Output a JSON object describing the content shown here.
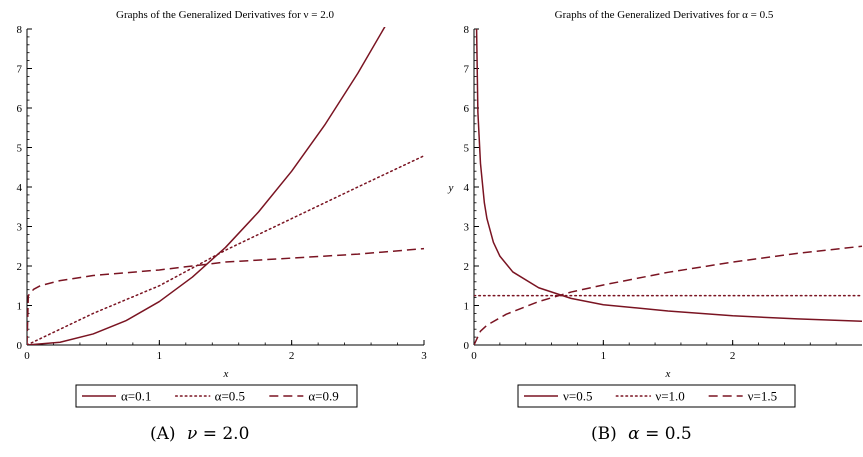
{
  "colors": {
    "curve": "#7a1422",
    "axis": "#000000"
  },
  "chart_data": [
    {
      "type": "line",
      "title": "Graphs of the Generalized Derivatives for ν = 2.0",
      "xlabel": "x",
      "ylabel": "",
      "xlim": [
        0,
        3
      ],
      "ylim": [
        0,
        8
      ],
      "xticks": [
        0,
        1,
        2,
        3
      ],
      "yticks": [
        0,
        1,
        2,
        3,
        4,
        5,
        6,
        7,
        8
      ],
      "grid": false,
      "legend_position": "bottom",
      "series": [
        {
          "name": "α=0.1",
          "dash": "solid",
          "x": [
            0,
            0.25,
            0.5,
            0.75,
            1,
            1.25,
            1.5,
            1.75,
            2,
            2.25,
            2.5,
            2.75,
            3
          ],
          "y": [
            0,
            0.07,
            0.28,
            0.62,
            1.1,
            1.72,
            2.47,
            3.37,
            4.4,
            5.57,
            6.88,
            8.32,
            9.9
          ]
        },
        {
          "name": "α=0.5",
          "dash": "dotted",
          "x": [
            0,
            0.5,
            1,
            1.5,
            2,
            2.5,
            3
          ],
          "y": [
            0,
            0.8,
            1.5,
            2.4,
            3.2,
            4.0,
            4.79
          ]
        },
        {
          "name": "α=0.9",
          "dash": "dashed",
          "x": [
            0,
            0.01,
            0.05,
            0.1,
            0.25,
            0.5,
            0.75,
            1,
            1.5,
            2,
            2.5,
            3
          ],
          "y": [
            0,
            1.25,
            1.41,
            1.5,
            1.63,
            1.76,
            1.83,
            1.9,
            2.1,
            2.2,
            2.3,
            2.44
          ]
        }
      ],
      "caption": {
        "label": "(A)",
        "text": "= 2.0",
        "symbol": "ν"
      }
    },
    {
      "type": "line",
      "title": "Graphs of the Generalized Derivatives for α = 0.5",
      "xlabel": "x",
      "ylabel": "y",
      "xlim": [
        0,
        3
      ],
      "ylim": [
        0,
        8
      ],
      "xticks": [
        0,
        1,
        2
      ],
      "yticks": [
        0,
        1,
        2,
        3,
        4,
        5,
        6,
        7,
        8
      ],
      "grid": false,
      "legend_position": "bottom",
      "series": [
        {
          "name": "ν=0.5",
          "dash": "solid",
          "x": [
            0.02,
            0.03,
            0.05,
            0.08,
            0.1,
            0.15,
            0.2,
            0.3,
            0.5,
            0.75,
            1,
            1.5,
            2,
            2.5,
            3
          ],
          "y": [
            8.0,
            5.9,
            4.6,
            3.6,
            3.2,
            2.6,
            2.25,
            1.85,
            1.45,
            1.18,
            1.02,
            0.86,
            0.74,
            0.66,
            0.6
          ]
        },
        {
          "name": "ν=1.0",
          "dash": "dotted",
          "x": [
            0,
            3
          ],
          "y": [
            1.25,
            1.25
          ]
        },
        {
          "name": "ν=1.5",
          "dash": "dashed",
          "x": [
            0,
            0.05,
            0.1,
            0.25,
            0.5,
            0.75,
            1,
            1.5,
            2,
            2.5,
            3
          ],
          "y": [
            0,
            0.35,
            0.5,
            0.78,
            1.1,
            1.34,
            1.52,
            1.84,
            2.1,
            2.32,
            2.5
          ]
        }
      ],
      "caption": {
        "label": "(B)",
        "text": "= 0.5",
        "symbol": "α"
      }
    }
  ]
}
